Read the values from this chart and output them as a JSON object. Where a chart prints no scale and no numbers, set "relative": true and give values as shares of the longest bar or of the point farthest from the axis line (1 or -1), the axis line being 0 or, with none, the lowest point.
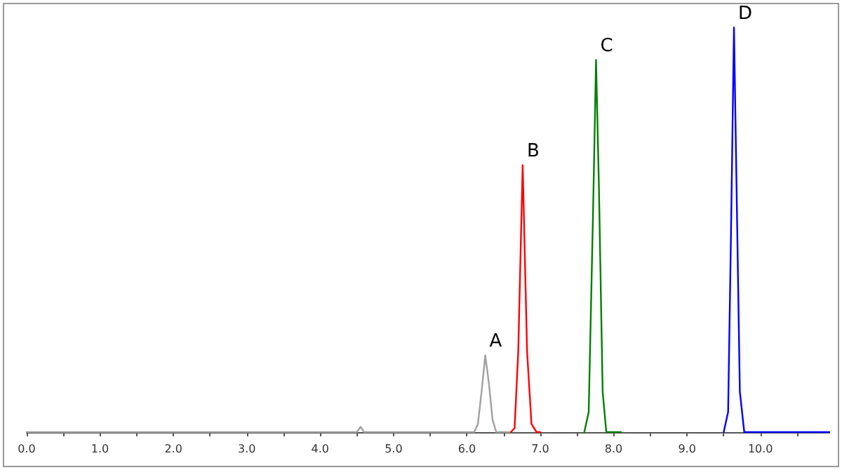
{
  "chart_data": {
    "type": "line",
    "relative": true,
    "grid": false,
    "marker": "none",
    "line_style": "solid",
    "xlim": [
      0,
      10.94
    ],
    "xticks": [
      {
        "value": 0,
        "label": "0.0"
      },
      {
        "value": 0.5,
        "label": null
      },
      {
        "value": 1,
        "label": "1.0"
      },
      {
        "value": 1.5,
        "label": null
      },
      {
        "value": 2,
        "label": "2.0"
      },
      {
        "value": 2.5,
        "label": null
      },
      {
        "value": 3,
        "label": "3.0"
      },
      {
        "value": 3.5,
        "label": null
      },
      {
        "value": 4,
        "label": "4.0"
      },
      {
        "value": 4.5,
        "label": null
      },
      {
        "value": 5,
        "label": "5.0"
      },
      {
        "value": 5.5,
        "label": null
      },
      {
        "value": 6,
        "label": "6.0"
      },
      {
        "value": 6.5,
        "label": null
      },
      {
        "value": 7,
        "label": "7.0"
      },
      {
        "value": 7.5,
        "label": null
      },
      {
        "value": 8,
        "label": "8.0"
      },
      {
        "value": 8.5,
        "label": null
      },
      {
        "value": 9,
        "label": "9.0"
      },
      {
        "value": 9.5,
        "label": null
      },
      {
        "value": 10,
        "label": "10.0"
      },
      {
        "value": 10.5,
        "label": null
      }
    ],
    "series": [
      {
        "color": "#a0a0a0",
        "x": [
          0,
          4.5,
          4.55,
          4.6,
          6.1,
          6.15,
          6.2,
          6.25,
          6.3,
          6.35,
          6.4,
          6.6
        ],
        "values": [
          0,
          0,
          0.013,
          0,
          0,
          0.02,
          0.1,
          0.19,
          0.12,
          0.03,
          0,
          0
        ]
      },
      {
        "color": "#ff0000",
        "x": [
          6.6,
          6.65,
          6.7,
          6.76,
          6.82,
          6.88,
          6.95,
          7.0
        ],
        "values": [
          0,
          0.01,
          0.2,
          0.66,
          0.2,
          0.02,
          0,
          0
        ]
      },
      {
        "color": "#008000",
        "x": [
          7.6,
          7.66,
          7.72,
          7.76,
          7.8,
          7.85,
          7.9,
          8.1
        ],
        "values": [
          0,
          0.05,
          0.55,
          0.92,
          0.6,
          0.1,
          0,
          0
        ]
      },
      {
        "color": "#0000ff",
        "x": [
          9.5,
          9.56,
          9.6,
          9.64,
          9.68,
          9.72,
          9.78,
          10.94
        ],
        "values": [
          0,
          0.05,
          0.5,
          1,
          0.55,
          0.1,
          0,
          0
        ]
      }
    ],
    "annotations": [
      {
        "text": "A",
        "x": 6.25,
        "y": 0.19
      },
      {
        "text": "B",
        "x": 6.76,
        "y": 0.66
      },
      {
        "text": "C",
        "x": 7.76,
        "y": 0.92
      },
      {
        "text": "D",
        "x": 9.64,
        "y": 1
      }
    ]
  }
}
